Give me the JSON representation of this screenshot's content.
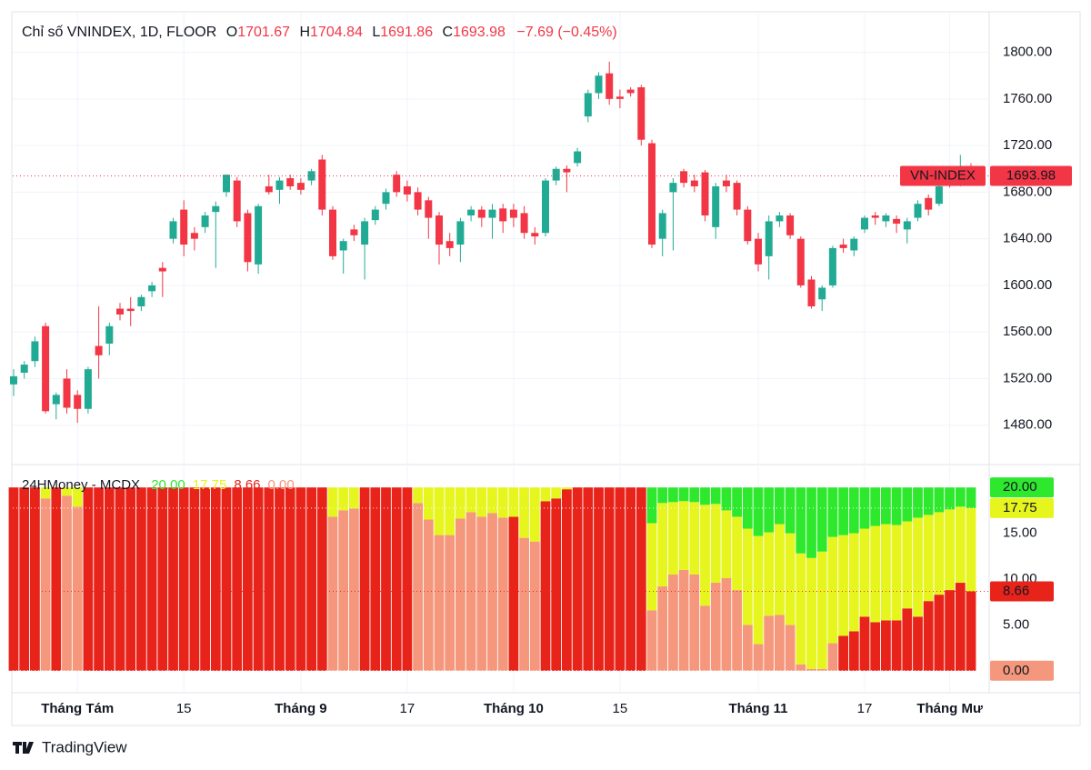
{
  "chart_data": [
    {
      "type": "candlestick",
      "title": "Chỉ số VNINDEX, 1D, FLOOR",
      "ohlc_labels": [
        "O",
        "H",
        "L",
        "C"
      ],
      "change": "−7.69 (−0.45%)",
      "series_label": "VN-INDEX",
      "up_color": "#22ab94",
      "down_color": "#f23645",
      "categories": [
        null,
        null,
        null,
        null,
        null,
        null,
        "Tháng Tám",
        null,
        null,
        null,
        null,
        null,
        null,
        null,
        null,
        null,
        "15",
        null,
        null,
        null,
        null,
        null,
        null,
        null,
        null,
        null,
        null,
        "Tháng 9",
        null,
        null,
        null,
        null,
        null,
        null,
        null,
        null,
        null,
        "17",
        null,
        null,
        null,
        null,
        null,
        null,
        null,
        null,
        null,
        "Tháng 10",
        null,
        null,
        null,
        null,
        null,
        null,
        null,
        null,
        null,
        "15",
        null,
        null,
        null,
        null,
        null,
        null,
        null,
        null,
        null,
        null,
        null,
        null,
        "Tháng 11",
        null,
        null,
        null,
        null,
        null,
        null,
        null,
        null,
        null,
        "17",
        null,
        null,
        null,
        null,
        null,
        null,
        null,
        "Tháng Mư",
        null,
        null
      ],
      "open": [
        1515,
        1525,
        1535,
        1565,
        1498,
        1520,
        1506,
        1494,
        1548,
        1550,
        1580,
        1580,
        1582,
        1595,
        1615,
        1640,
        1665,
        1645,
        1650,
        1663,
        1680,
        1690,
        1662,
        1618,
        1685,
        1682,
        1692,
        1688,
        1690,
        1708,
        1665,
        1630,
        1648,
        1635,
        1656,
        1670,
        1695,
        1685,
        1680,
        1673,
        1660,
        1638,
        1635,
        1660,
        1665,
        1658,
        1666,
        1665,
        1662,
        1645,
        1645,
        1690,
        1700,
        1705,
        1745,
        1765,
        1782,
        1762,
        1768,
        1770,
        1722,
        1640,
        1680,
        1698,
        1690,
        1697,
        1650,
        1690,
        1688,
        1665,
        1640,
        1625,
        1655,
        1660,
        1640,
        1605,
        1588,
        1600,
        1635,
        1630,
        1648,
        1660,
        1655,
        1657,
        1648,
        1658,
        1675,
        1670,
        1690,
        1690,
        1701.67
      ],
      "high": [
        1528,
        1535,
        1556,
        1568,
        1508,
        1528,
        1510,
        1530,
        1582,
        1568,
        1585,
        1590,
        1592,
        1603,
        1620,
        1658,
        1673,
        1650,
        1663,
        1672,
        1695,
        1693,
        1665,
        1670,
        1695,
        1693,
        1695,
        1692,
        1700,
        1712,
        1668,
        1640,
        1652,
        1658,
        1668,
        1683,
        1698,
        1690,
        1684,
        1676,
        1663,
        1645,
        1658,
        1668,
        1668,
        1670,
        1670,
        1670,
        1668,
        1650,
        1692,
        1702,
        1703,
        1718,
        1768,
        1783,
        1792,
        1768,
        1770,
        1772,
        1725,
        1665,
        1692,
        1700,
        1695,
        1699,
        1688,
        1695,
        1690,
        1668,
        1645,
        1660,
        1663,
        1662,
        1642,
        1608,
        1600,
        1634,
        1640,
        1642,
        1660,
        1663,
        1662,
        1660,
        1658,
        1673,
        1678,
        1688,
        1694,
        1712,
        1704.84
      ],
      "low": [
        1505,
        1520,
        1530,
        1490,
        1485,
        1490,
        1482,
        1490,
        1520,
        1540,
        1570,
        1565,
        1578,
        1590,
        1590,
        1636,
        1625,
        1630,
        1645,
        1615,
        1676,
        1650,
        1612,
        1610,
        1678,
        1670,
        1682,
        1678,
        1686,
        1660,
        1622,
        1610,
        1638,
        1605,
        1652,
        1665,
        1676,
        1672,
        1660,
        1640,
        1618,
        1625,
        1620,
        1655,
        1650,
        1640,
        1645,
        1650,
        1640,
        1635,
        1642,
        1686,
        1680,
        1702,
        1740,
        1760,
        1755,
        1752,
        1762,
        1720,
        1632,
        1625,
        1630,
        1684,
        1680,
        1655,
        1640,
        1680,
        1660,
        1635,
        1612,
        1605,
        1650,
        1640,
        1598,
        1580,
        1578,
        1598,
        1628,
        1625,
        1645,
        1652,
        1650,
        1645,
        1636,
        1655,
        1660,
        1668,
        1684,
        1685,
        1691.86
      ],
      "close": [
        1522,
        1532,
        1552,
        1492,
        1506,
        1495,
        1494,
        1528,
        1540,
        1565,
        1575,
        1578,
        1590,
        1600,
        1612,
        1655,
        1635,
        1640,
        1660,
        1668,
        1695,
        1655,
        1620,
        1668,
        1680,
        1690,
        1685,
        1682,
        1698,
        1665,
        1625,
        1638,
        1643,
        1655,
        1665,
        1680,
        1680,
        1678,
        1665,
        1658,
        1635,
        1632,
        1655,
        1665,
        1658,
        1665,
        1655,
        1658,
        1645,
        1642,
        1690,
        1700,
        1697,
        1715,
        1765,
        1780,
        1760,
        1760,
        1765,
        1725,
        1635,
        1662,
        1688,
        1688,
        1685,
        1660,
        1685,
        1685,
        1665,
        1638,
        1618,
        1655,
        1660,
        1643,
        1600,
        1582,
        1598,
        1632,
        1632,
        1640,
        1658,
        1658,
        1660,
        1653,
        1655,
        1670,
        1665,
        1685,
        1688,
        1692,
        1693.98
      ],
      "ylim": [
        1447,
        1834
      ],
      "yticks": [
        {
          "value": 1480,
          "label": "1480.00"
        },
        {
          "value": 1520,
          "label": "1520.00"
        },
        {
          "value": 1560,
          "label": "1560.00"
        },
        {
          "value": 1600,
          "label": "1600.00"
        },
        {
          "value": 1640,
          "label": "1640.00"
        },
        {
          "value": 1680,
          "label": "1680.00"
        },
        {
          "value": 1720,
          "label": "1720.00"
        },
        {
          "value": 1760,
          "label": "1760.00"
        },
        {
          "value": 1800,
          "label": "1800.00"
        }
      ],
      "grid": true
    },
    {
      "type": "bar",
      "stacked": true,
      "title": "24HMoney - MCDX",
      "levels": [
        {
          "value": 20,
          "label": "20.00",
          "color": "#2ee82e"
        },
        {
          "value": 17.75,
          "label": "17.75",
          "color": "#e6f51e"
        },
        {
          "value": 8.66,
          "label": "8.66",
          "color": "#e8231a"
        },
        {
          "value": 0,
          "label": "0.00",
          "color": "#f4977c"
        }
      ],
      "series": [
        {
          "color": "#e8231a",
          "values": [
            20,
            20,
            20,
            null,
            20,
            null,
            null,
            20,
            20,
            20,
            20,
            20,
            20,
            20,
            20,
            20,
            20,
            20,
            20,
            20,
            20,
            20,
            20,
            20,
            20,
            20,
            20,
            20,
            20,
            20,
            null,
            null,
            null,
            20,
            20,
            20,
            20,
            20,
            null,
            null,
            null,
            null,
            null,
            null,
            null,
            null,
            null,
            16.8,
            null,
            null,
            18.5,
            18.8,
            19.8,
            20,
            20,
            20,
            20,
            20,
            20,
            20,
            null,
            null,
            null,
            null,
            null,
            null,
            null,
            null,
            null,
            null,
            null,
            null,
            null,
            null,
            null,
            null,
            null,
            null,
            3.8,
            4.3,
            5.9,
            5.3,
            5.5,
            5.5,
            6.8,
            5.9,
            7.6,
            8.3,
            8.8,
            9.6,
            8.66
          ]
        },
        {
          "color": "#f4977c",
          "values": [
            null,
            null,
            null,
            18.8,
            null,
            19.1,
            17.9,
            null,
            null,
            null,
            null,
            null,
            null,
            null,
            null,
            null,
            null,
            null,
            null,
            null,
            null,
            null,
            null,
            null,
            null,
            null,
            null,
            null,
            null,
            null,
            16.8,
            17.5,
            17.7,
            null,
            null,
            null,
            null,
            null,
            18.3,
            16.5,
            14.8,
            14.8,
            16.6,
            17.3,
            16.8,
            17.2,
            16.7,
            null,
            14.5,
            14.1,
            null,
            null,
            null,
            null,
            null,
            null,
            null,
            null,
            null,
            null,
            6.6,
            9.2,
            10.5,
            11.0,
            10.5,
            7.1,
            9.6,
            10.1,
            8.8,
            5.0,
            2.9,
            6.0,
            6.1,
            5.0,
            0.7,
            0.2,
            0.2,
            3.0,
            null,
            null,
            null,
            null,
            null,
            null,
            null,
            null,
            null,
            null,
            null,
            null,
            null
          ]
        },
        {
          "color": "#e6f51e",
          "values": [
            null,
            null,
            null,
            1.2,
            null,
            0.9,
            2.1,
            null,
            null,
            null,
            null,
            null,
            null,
            null,
            null,
            null,
            null,
            null,
            null,
            null,
            null,
            null,
            null,
            null,
            null,
            null,
            null,
            null,
            null,
            null,
            3.2,
            2.5,
            2.3,
            null,
            null,
            null,
            null,
            null,
            1.7,
            3.5,
            5.2,
            5.2,
            3.4,
            2.7,
            3.2,
            2.8,
            3.3,
            3.2,
            5.5,
            5.9,
            1.5,
            1.2,
            0.2,
            null,
            null,
            null,
            null,
            null,
            null,
            null,
            9.5,
            9.1,
            7.9,
            7.5,
            7.9,
            11.0,
            8.6,
            7.4,
            8.0,
            10.5,
            11.8,
            9.1,
            9.9,
            10.0,
            12.1,
            12.1,
            12.8,
            11.6,
            11.0,
            10.7,
            9.6,
            10.5,
            10.5,
            10.4,
            9.5,
            10.8,
            9.4,
            9.0,
            8.8,
            8.3,
            9.09
          ]
        },
        {
          "color": "#2ee82e",
          "values": [
            null,
            null,
            null,
            null,
            null,
            null,
            null,
            null,
            null,
            null,
            null,
            null,
            null,
            null,
            null,
            null,
            null,
            null,
            null,
            null,
            null,
            null,
            null,
            null,
            null,
            null,
            null,
            null,
            null,
            null,
            null,
            null,
            null,
            null,
            null,
            null,
            null,
            null,
            null,
            null,
            null,
            null,
            null,
            null,
            null,
            null,
            null,
            null,
            null,
            null,
            null,
            null,
            null,
            null,
            null,
            null,
            null,
            null,
            null,
            null,
            3.9,
            1.7,
            1.6,
            1.5,
            1.6,
            1.9,
            1.8,
            2.5,
            3.2,
            4.5,
            5.3,
            4.9,
            4.0,
            5.0,
            7.2,
            7.7,
            7.0,
            5.4,
            5.2,
            5.0,
            4.5,
            4.2,
            4.0,
            4.1,
            3.7,
            3.3,
            3.0,
            2.7,
            2.4,
            2.1,
            2.25
          ]
        }
      ],
      "ylim": [
        -2.4,
        22.3
      ],
      "yticks": [
        {
          "value": 5,
          "label": "5.00"
        },
        {
          "value": 10,
          "label": "10.00"
        },
        {
          "value": 15,
          "label": "15.00"
        }
      ]
    }
  ],
  "footer": {
    "brand": "TradingView"
  }
}
